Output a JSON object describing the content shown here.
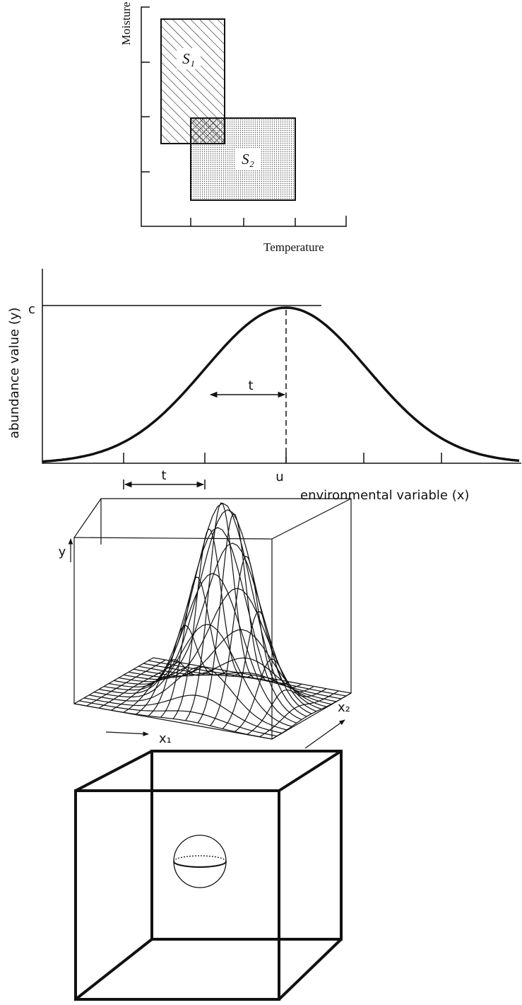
{
  "niche_rectangles": {
    "y_label": "Moisture",
    "x_label": "Temperature",
    "regions": [
      {
        "label": "S₁"
      },
      {
        "label": "S₂"
      }
    ]
  },
  "response_curve": {
    "y_label": "abundance value (y)",
    "x_label": "environmental variable (x)",
    "max_label": "c",
    "optimum_label": "u",
    "tolerance_labels": [
      "t",
      "t"
    ]
  },
  "surface": {
    "y_label": "y",
    "x1_label": "x₁",
    "x2_label": "x₂"
  }
}
